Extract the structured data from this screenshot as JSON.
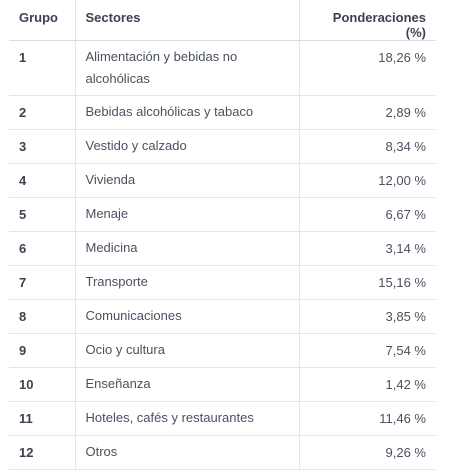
{
  "table": {
    "headers": {
      "grupo": "Grupo",
      "sectores": "Sectores",
      "ponderaciones": "Ponderaciones (%)"
    },
    "rows": [
      {
        "grupo": "1",
        "sector": "Alimentación y bebidas no alcohólicas",
        "ponderacion": "18,26 %"
      },
      {
        "grupo": "2",
        "sector": "Bebidas alcohólicas y tabaco",
        "ponderacion": "2,89 %"
      },
      {
        "grupo": "3",
        "sector": "Vestido y calzado",
        "ponderacion": "8,34 %"
      },
      {
        "grupo": "4",
        "sector": "Vivienda",
        "ponderacion": "12,00 %"
      },
      {
        "grupo": "5",
        "sector": "Menaje",
        "ponderacion": "6,67 %"
      },
      {
        "grupo": "6",
        "sector": "Medicina",
        "ponderacion": "3,14 %"
      },
      {
        "grupo": "7",
        "sector": "Transporte",
        "ponderacion": "15,16 %"
      },
      {
        "grupo": "8",
        "sector": "Comunicaciones",
        "ponderacion": "3,85 %"
      },
      {
        "grupo": "9",
        "sector": "Ocio y cultura",
        "ponderacion": "7,54 %"
      },
      {
        "grupo": "10",
        "sector": "Enseñanza",
        "ponderacion": "1,42 %"
      },
      {
        "grupo": "11",
        "sector": "Hoteles, cafés y restaurantes",
        "ponderacion": "11,46 %"
      },
      {
        "grupo": "12",
        "sector": "Otros",
        "ponderacion": "9,26 %"
      }
    ]
  }
}
